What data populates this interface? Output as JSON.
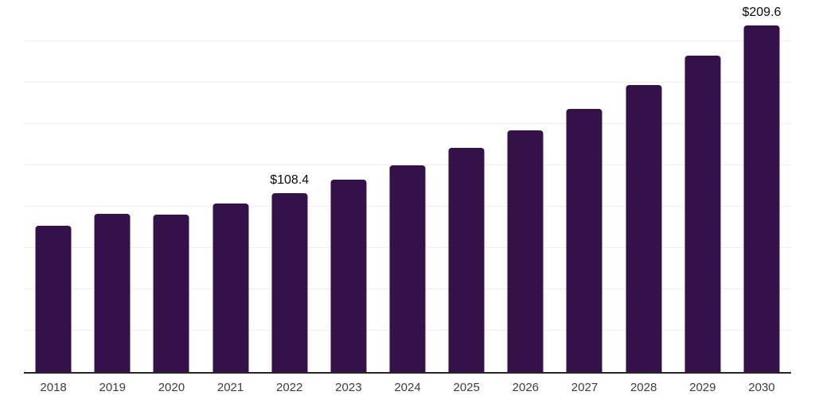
{
  "chart_data": {
    "type": "bar",
    "title": "",
    "xlabel": "",
    "ylabel": "",
    "categories": [
      "2018",
      "2019",
      "2020",
      "2021",
      "2022",
      "2023",
      "2024",
      "2025",
      "2026",
      "2027",
      "2028",
      "2029",
      "2030"
    ],
    "values": [
      88.5,
      95.7,
      95.2,
      101.9,
      108.4,
      116.5,
      125.0,
      135.5,
      146.2,
      159.0,
      173.5,
      191.3,
      209.6
    ],
    "data_labels": [
      "",
      "",
      "",
      "",
      "$108.4",
      "",
      "",
      "",
      "",
      "",
      "",
      "",
      "$209.6"
    ],
    "ylim": [
      0,
      225
    ],
    "gridline_interval": 25,
    "grid": true,
    "legend": false,
    "colors": {
      "bar": "#341148",
      "gridline": "#f0f0f0",
      "axis_line": "#262626",
      "tick_label": "#3d3d3d",
      "data_label": "#0a0a0a",
      "background": "#ffffff"
    }
  }
}
